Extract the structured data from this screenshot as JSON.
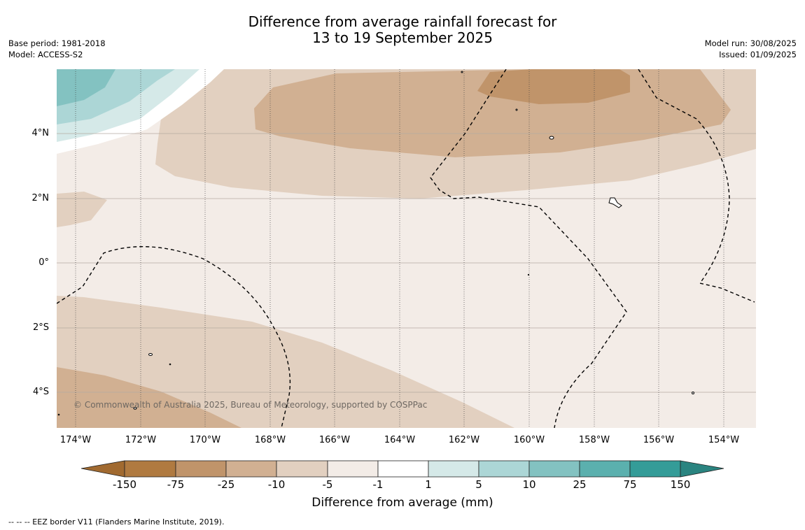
{
  "title": {
    "line1": "Difference from average rainfall forecast for",
    "line2": "13 to 19 September 2025"
  },
  "meta": {
    "base_period": "Base period: 1981-2018",
    "model": "Model: ACCESS-S2",
    "model_run": "Model run: 30/08/2025",
    "issued": "Issued: 01/09/2025"
  },
  "axes": {
    "lat_labels": [
      "4°N",
      "2°N",
      "0°",
      "2°S",
      "4°S"
    ],
    "lon_labels": [
      "174°W",
      "172°W",
      "170°W",
      "168°W",
      "166°W",
      "164°W",
      "162°W",
      "160°W",
      "158°W",
      "156°W",
      "154°W"
    ]
  },
  "copyright": "© Commonwealth of Australia 2025, Bureau of Meteorology, supported by COSPPac",
  "colorbar": {
    "title": "Difference from average (mm)",
    "ticks": [
      "-150",
      "-75",
      "-25",
      "-10",
      "-5",
      "-1",
      "1",
      "5",
      "10",
      "25",
      "75",
      "150"
    ],
    "colors": [
      "#a16a30",
      "#b07a40",
      "#c0946a",
      "#d1b092",
      "#e2d0c0",
      "#f3ece7",
      "#ffffff",
      "#d5e9e8",
      "#acd6d6",
      "#83c2c1",
      "#5bb0ae",
      "#349c98",
      "#2a8480"
    ]
  },
  "footnote": "--  --  -- EEZ border V11 (Flanders Marine Institute, 2019)."
}
